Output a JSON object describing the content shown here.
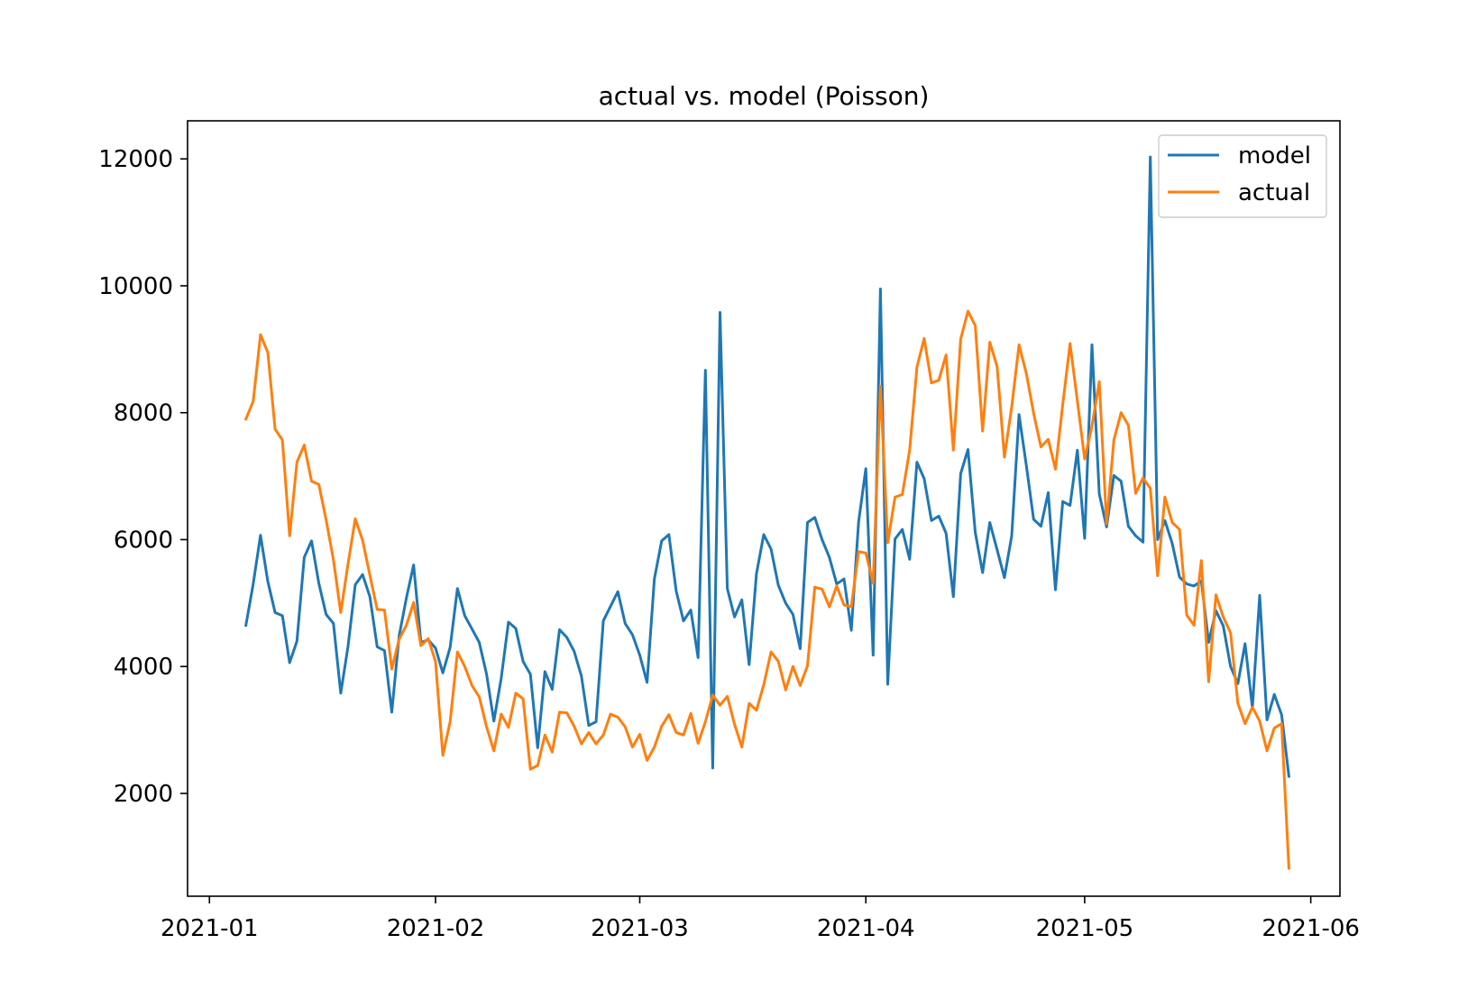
{
  "chart_data": {
    "type": "line",
    "title": "actual vs. model (Poisson)",
    "xlabel": "",
    "ylabel": "",
    "x_start": "2021-01-06",
    "x_step_days": 1,
    "x_ticks": [
      "2021-01",
      "2021-02",
      "2021-03",
      "2021-04",
      "2021-05",
      "2021-06"
    ],
    "y_ticks": [
      2000,
      4000,
      6000,
      8000,
      10000,
      12000
    ],
    "xlim": [
      "2020-12-29",
      "2021-06-05"
    ],
    "ylim": [
      380,
      12600
    ],
    "legend": {
      "position": "top-right",
      "entries": [
        "model",
        "actual"
      ]
    },
    "grid": false,
    "series": [
      {
        "name": "model",
        "color": "#1f77b4",
        "values": [
          4650,
          5300,
          6070,
          5340,
          4850,
          4800,
          4060,
          4400,
          5720,
          5980,
          5310,
          4820,
          4680,
          3580,
          4310,
          5290,
          5450,
          5100,
          4310,
          4250,
          3280,
          4480,
          5080,
          5600,
          4380,
          4420,
          4290,
          3900,
          4300,
          5230,
          4800,
          4590,
          4380,
          3880,
          3140,
          3810,
          4700,
          4600,
          4080,
          3880,
          2720,
          3920,
          3640,
          4580,
          4460,
          4240,
          3850,
          3070,
          3130,
          4720,
          4950,
          5180,
          4680,
          4500,
          4180,
          3750,
          5380,
          5980,
          6080,
          5190,
          4720,
          4890,
          4140,
          8670,
          2400,
          9580,
          5230,
          4780,
          5050,
          4030,
          5460,
          6080,
          5850,
          5280,
          5000,
          4820,
          4280,
          6270,
          6350,
          6000,
          5720,
          5300,
          5380,
          4570,
          6280,
          7120,
          4180,
          9950,
          3720,
          6010,
          6160,
          5690,
          7220,
          6960,
          6300,
          6370,
          6100,
          5100,
          7040,
          7420,
          6110,
          5480,
          6270,
          5840,
          5400,
          6060,
          7970,
          7170,
          6320,
          6210,
          6740,
          5210,
          6600,
          6540,
          7410,
          6020,
          9070,
          6720,
          6200,
          7010,
          6920,
          6210,
          6060,
          5960,
          12030,
          6000,
          6300,
          5940,
          5410,
          5300,
          5270,
          5350,
          4380,
          4880,
          4640,
          4000,
          3730,
          4360,
          3350,
          5120,
          3160,
          3560,
          3240,
          2270
        ]
      },
      {
        "name": "actual",
        "color": "#ff7f0e",
        "values": [
          7900,
          8180,
          9230,
          8950,
          7740,
          7570,
          6060,
          7220,
          7490,
          6920,
          6870,
          6310,
          5680,
          4850,
          5610,
          6330,
          5990,
          5440,
          4900,
          4890,
          3960,
          4430,
          4650,
          5010,
          4330,
          4440,
          4080,
          2600,
          3130,
          4230,
          4000,
          3700,
          3520,
          3050,
          2670,
          3250,
          3040,
          3580,
          3490,
          2380,
          2440,
          2920,
          2650,
          3280,
          3270,
          3060,
          2780,
          2960,
          2780,
          2920,
          3250,
          3200,
          3050,
          2730,
          2930,
          2520,
          2730,
          3060,
          3240,
          2960,
          2920,
          3260,
          2790,
          3130,
          3550,
          3390,
          3530,
          3090,
          2730,
          3420,
          3310,
          3710,
          4230,
          4080,
          3630,
          4000,
          3700,
          4010,
          5250,
          5220,
          4940,
          5270,
          4970,
          4940,
          5810,
          5790,
          5310,
          8420,
          5950,
          6670,
          6710,
          7410,
          8720,
          9170,
          8470,
          8510,
          8910,
          7410,
          9160,
          9600,
          9370,
          7710,
          9110,
          8730,
          7300,
          8090,
          9070,
          8620,
          7990,
          7460,
          7580,
          7110,
          8130,
          9090,
          8190,
          7270,
          7790,
          8490,
          6250,
          7570,
          8000,
          7800,
          6730,
          6970,
          6810,
          5430,
          6670,
          6270,
          6160,
          4810,
          4650,
          5670,
          3760,
          5130,
          4780,
          4530,
          3420,
          3100,
          3360,
          3140,
          2670,
          3030,
          3100,
          820
        ]
      }
    ]
  }
}
